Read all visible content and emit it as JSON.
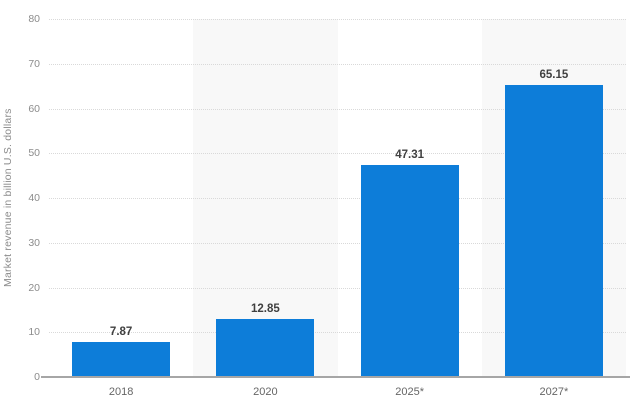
{
  "chart_data": {
    "type": "bar",
    "title": "",
    "xlabel": "",
    "ylabel": "Market revenue in billion U.S. dollars",
    "categories": [
      "2018",
      "2020",
      "2025*",
      "2027*"
    ],
    "values": [
      7.87,
      12.85,
      47.31,
      65.15
    ],
    "value_labels": [
      "7.87",
      "12.85",
      "47.31",
      "65.15"
    ],
    "ylim": [
      0,
      80
    ],
    "yticks": [
      0,
      10,
      20,
      30,
      40,
      50,
      60,
      70,
      80
    ],
    "grid": "horizontal dotted gridlines at each y tick",
    "legend": "none",
    "plot_bands": "alternating vertical bands; columns 2020 and 2027* shaded light gray",
    "colors": {
      "bar": "#0d7dd9",
      "band_shaded": "#f8f8f8",
      "gridline": "#d9d9d9",
      "axis_line": "#a6a6a6",
      "tick_label": "#8c8c8c",
      "category_label": "#666666",
      "value_label": "#404040",
      "background": "#ffffff"
    }
  }
}
